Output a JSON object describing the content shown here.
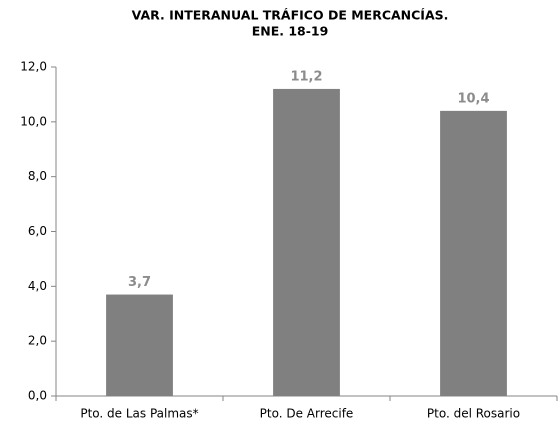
{
  "chart_data": {
    "type": "bar",
    "title": "VAR. INTERANUAL TRÁFICO DE MERCANCÍAS.",
    "subtitle": "ENE. 18-19",
    "categories": [
      "Pto. de Las Palmas*",
      "Pto. De Arrecife",
      "Pto. del Rosario"
    ],
    "values": [
      3.7,
      11.2,
      10.4
    ],
    "value_labels": [
      "3,7",
      "11,2",
      "10,4"
    ],
    "color": "#808080",
    "ylim": [
      0,
      12
    ],
    "yticks": [
      {
        "value": 0,
        "label": "0,0"
      },
      {
        "value": 2,
        "label": "2,0"
      },
      {
        "value": 4,
        "label": "4,0"
      },
      {
        "value": 6,
        "label": "6,0"
      },
      {
        "value": 8,
        "label": "8,0"
      },
      {
        "value": 10,
        "label": "10,0"
      },
      {
        "value": 12,
        "label": "12,0"
      }
    ],
    "grid": false
  }
}
